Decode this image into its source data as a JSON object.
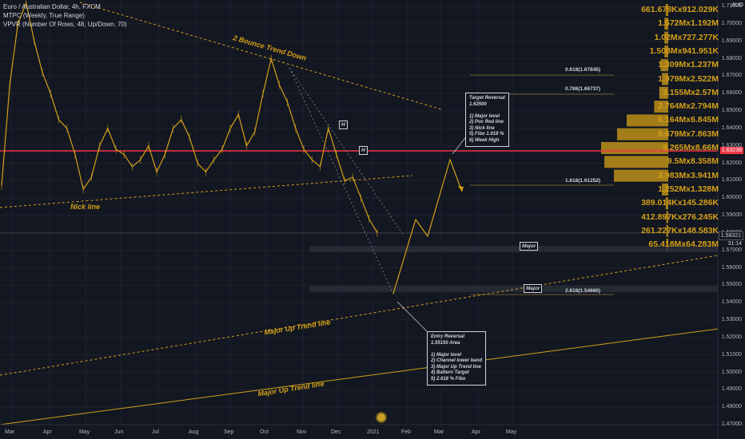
{
  "legend": {
    "symbol": "Euro / Australian Dollar, 4h, FXCM",
    "indicator1": "MTPC (Weekly, True Range)",
    "indicator2": "VPVR (Number Of Rows, 48, Up/Down, 70)"
  },
  "price_axis": {
    "currency": "AUD",
    "ticks": [
      "1.71000",
      "1.70000",
      "1.69000",
      "1.68000",
      "1.67000",
      "1.66000",
      "1.65000",
      "1.64000",
      "1.63000",
      "1.62000",
      "1.61000",
      "1.60000",
      "1.59000",
      "1.58000",
      "1.57000",
      "1.56000",
      "1.55000",
      "1.54000",
      "1.53000",
      "1.52000",
      "1.51000",
      "1.50000",
      "1.49000",
      "1.48000",
      "1.47000"
    ],
    "current_price_red": "1.63238",
    "last_price": "1.58321",
    "countdown": "31:14"
  },
  "time_axis": {
    "ticks": [
      "Mar",
      "Apr",
      "May",
      "Jun",
      "Jul",
      "Aug",
      "Sep",
      "Oct",
      "Nov",
      "Dec",
      "2021",
      "Feb",
      "Mar",
      "Apr",
      "May"
    ]
  },
  "colors": {
    "background": "#131722",
    "price_line": "#d4a017",
    "red_line": "#f23645",
    "vpvr": "#d4a017"
  },
  "vpvr_labels": [
    "661.678Kx912.029K",
    "1.572Mx1.192M",
    "1.02Mx727.277K",
    "1.508Mx941.951K",
    "1.309Mx1.237M",
    "1.979Mx2.522M",
    "3.155Mx2.57M",
    "2.764Mx2.794M",
    "6.164Mx6.845M",
    "6.679Mx7.863M",
    "9.265Mx8.66M",
    "9.5Mx8.358M",
    "3.983Mx3.941M",
    "1.252Mx1.328M",
    "389.014Kx145.286K",
    "412.897Kx276.245K",
    "261.227Kx148.583K",
    "65.418Mx64.283M"
  ],
  "fib_levels": [
    {
      "label": "0.618(1.67845)"
    },
    {
      "label": "0.786(1.66737)"
    },
    {
      "label": "1.618(1.61252)"
    },
    {
      "label": "2.618(1.54660)"
    }
  ],
  "annotations": {
    "bounce_trend": "2 Bounce Trend Down",
    "nick_line": "Nick line",
    "major_up_1": "Major Up Trend line",
    "major_up_2": "Major Up Trend line",
    "major_tag_1": "Major",
    "major_tag_2": "Major",
    "h_tag_1": "H",
    "h_tag_2": "H"
  },
  "target_note": {
    "lines": [
      "Target Reversal",
      "1.62500",
      "",
      "1) Major level",
      "2) Poc Red line",
      "3) Nick line",
      "5) Fibo 1.618 %",
      "6) Week High"
    ]
  },
  "entry_note": {
    "lines": [
      "Entry Reversal",
      "1.55150 Area",
      "",
      "1) Major level",
      "2) Channel lower band",
      "3) Major Up Trend line",
      "4) Battern Target",
      "5) 2.618 % Fibo"
    ]
  },
  "chart_data": {
    "type": "line",
    "title": "",
    "xlabel": "",
    "ylabel": "",
    "ylim": [
      1.467,
      1.717
    ],
    "x_ticks": [
      "Mar",
      "Apr",
      "May",
      "Jun",
      "Jul",
      "Aug",
      "Sep",
      "Oct",
      "Nov",
      "Dec",
      "2021",
      "Feb",
      "Mar",
      "Apr",
      "May"
    ],
    "series": [
      {
        "values": [
          1.607,
          1.665,
          1.7,
          1.712,
          1.69,
          1.672,
          1.66,
          1.645,
          1.64,
          1.625,
          1.605,
          1.612,
          1.63,
          1.64,
          1.628,
          1.625,
          1.618,
          1.622,
          1.63,
          1.615,
          1.625,
          1.64,
          1.645,
          1.635,
          1.62,
          1.615,
          1.622,
          1.628,
          1.64,
          1.648,
          1.63,
          1.638,
          1.66,
          1.68,
          1.665,
          1.655,
          1.64,
          1.628,
          1.622,
          1.618,
          1.64,
          1.625,
          1.61,
          1.612,
          1.6,
          1.588,
          1.58
        ]
      }
    ]
  }
}
